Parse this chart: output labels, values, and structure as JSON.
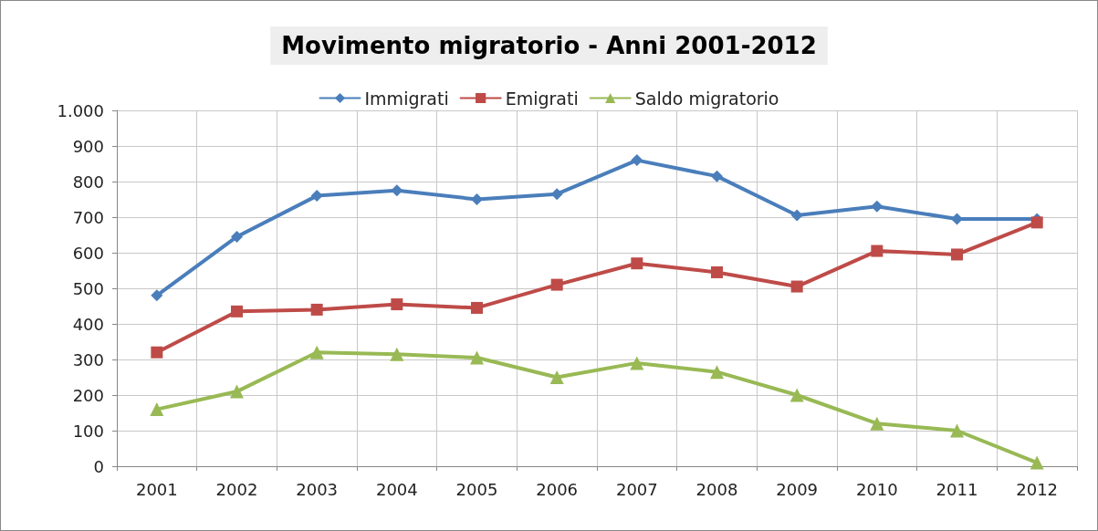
{
  "chart_data": {
    "type": "line",
    "title": "Movimento migratorio - Anni 2001-2012",
    "categories": [
      "2001",
      "2002",
      "2003",
      "2004",
      "2005",
      "2006",
      "2007",
      "2008",
      "2009",
      "2010",
      "2011",
      "2012"
    ],
    "series": [
      {
        "name": "Immigrati",
        "color": "#4a7ebb",
        "marker": "diamond",
        "values": [
          480,
          645,
          760,
          775,
          750,
          765,
          860,
          815,
          705,
          730,
          695,
          695
        ]
      },
      {
        "name": "Emigrati",
        "color": "#be4b48",
        "marker": "square",
        "values": [
          320,
          435,
          440,
          455,
          445,
          510,
          570,
          545,
          505,
          605,
          595,
          685
        ]
      },
      {
        "name": "Saldo migratorio",
        "color": "#98b954",
        "marker": "triangle",
        "values": [
          160,
          210,
          320,
          315,
          305,
          250,
          290,
          265,
          200,
          120,
          100,
          10
        ]
      }
    ],
    "ylim": [
      0,
      1000
    ],
    "yticks": [
      0,
      100,
      200,
      300,
      400,
      500,
      600,
      700,
      800,
      900,
      {
        "value": 1000,
        "label": "1.000"
      }
    ],
    "grid": true,
    "legend": "top",
    "line_style": "solid"
  }
}
